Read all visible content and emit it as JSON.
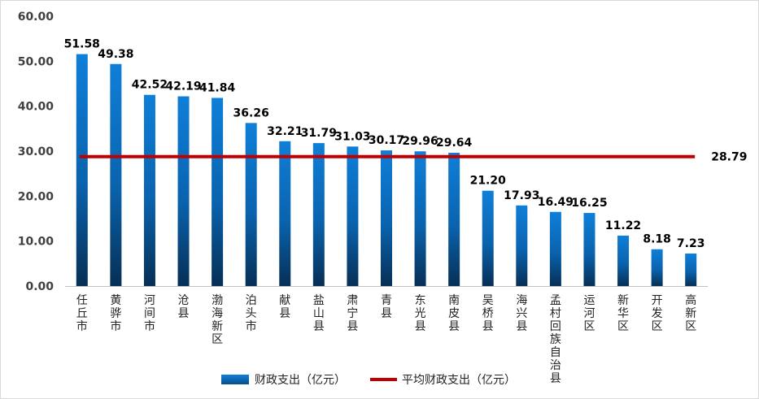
{
  "chart_data": {
    "type": "bar",
    "categories": [
      "任丘市",
      "黄骅市",
      "河间市",
      "沧县",
      "渤海新区",
      "泊头市",
      "献县",
      "盐山县",
      "肃宁县",
      "青县",
      "东光县",
      "南皮县",
      "吴桥县",
      "海兴县",
      "孟村回族自治县",
      "运河区",
      "新华区",
      "开发区",
      "高新区"
    ],
    "series": [
      {
        "name": "财政支出（亿元）",
        "type": "bar",
        "values": [
          51.58,
          49.38,
          42.52,
          42.19,
          41.84,
          36.26,
          32.21,
          31.79,
          31.03,
          30.17,
          29.96,
          29.64,
          21.2,
          17.93,
          16.49,
          16.25,
          11.22,
          8.18,
          7.23
        ],
        "labels": [
          "51.58",
          "49.38",
          "42.52",
          "42.19",
          "41.84",
          "36.26",
          "32.21",
          "31.79",
          "31.03",
          "30.17",
          "29.96",
          "29.64",
          "21.20",
          "17.93",
          "16.49",
          "16.25",
          "11.22",
          "8.18",
          "7.23"
        ],
        "color": "#0B72C7"
      },
      {
        "name": "平均财政支出（亿元）",
        "type": "line",
        "value": 28.79,
        "label": "28.79",
        "color": "#C00000"
      }
    ],
    "ylim": [
      0,
      60
    ],
    "yticks": [
      "0.00",
      "10.00",
      "20.00",
      "30.00",
      "40.00",
      "50.00",
      "60.00"
    ],
    "grid": false,
    "legend_position": "bottom"
  }
}
